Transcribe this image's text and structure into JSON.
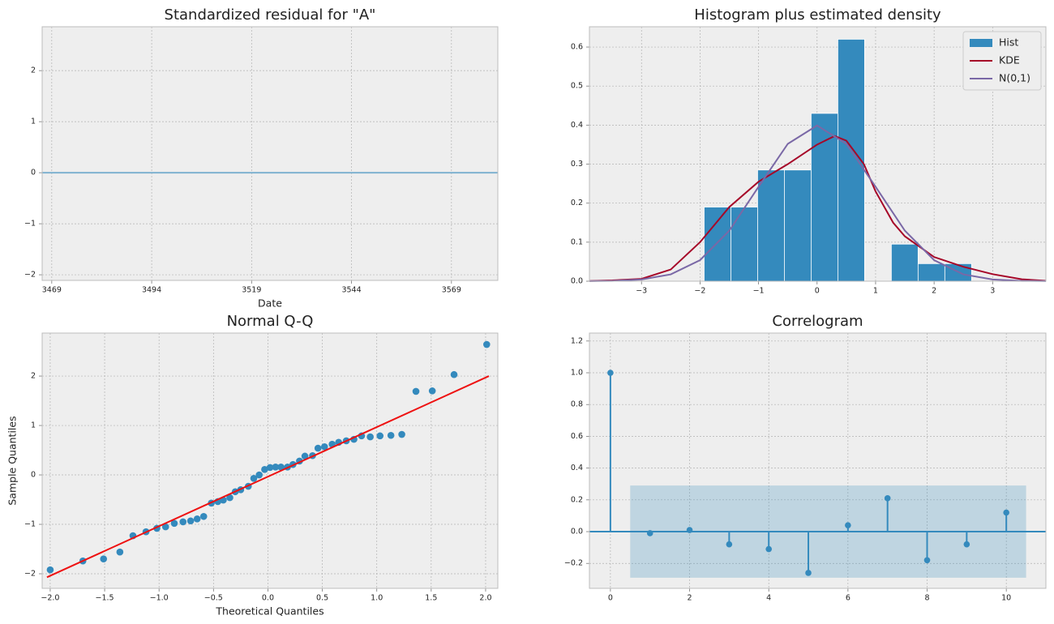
{
  "chart_data": [
    {
      "type": "line",
      "title": "Standardized residual for \"A\"",
      "xlabel": "Date",
      "x": [
        3466.6,
        3580.6
      ],
      "values": [
        0,
        0
      ],
      "color": "#7fb2d0",
      "xlim": [
        3466.6,
        3580.6
      ],
      "ylim": [
        -2.11,
        2.86
      ],
      "xticks": [
        3469,
        3494,
        3519,
        3544,
        3569
      ],
      "yticks": [
        {
          "value": -2,
          "label": "−2"
        },
        {
          "value": -1,
          "label": "−1"
        },
        0,
        1,
        2
      ],
      "grid": true
    },
    {
      "type": "histogram",
      "title": "Histogram plus estimated density",
      "name": "Hist",
      "color": "#348abd",
      "bins": [
        -1.93,
        -1.473,
        -1.016,
        -0.559,
        -0.102,
        0.355,
        0.812,
        1.269,
        1.726,
        2.183,
        2.64
      ],
      "values": [
        0.19,
        0.19,
        0.285,
        0.285,
        0.43,
        0.62,
        0,
        0.095,
        0.045,
        0.045
      ],
      "lines": [
        {
          "name": "KDE",
          "color": "#a60628",
          "x": [
            -3.89,
            -3.5,
            -3,
            -2.5,
            -2,
            -1.5,
            -1,
            -0.5,
            0,
            0.3,
            0.5,
            0.8,
            1,
            1.3,
            1.5,
            2,
            2.5,
            3,
            3.5,
            3.91
          ],
          "values": [
            0.0005,
            0.002,
            0.006,
            0.03,
            0.1,
            0.19,
            0.255,
            0.3,
            0.35,
            0.372,
            0.36,
            0.3,
            0.23,
            0.15,
            0.115,
            0.062,
            0.037,
            0.018,
            0.005,
            0.001
          ]
        },
        {
          "name": "N(0,1)",
          "color": "#7a68a6",
          "x": [
            -3.89,
            -3.5,
            -3,
            -2.5,
            -2,
            -1.5,
            -1,
            -0.5,
            0,
            0.5,
            1,
            1.5,
            2,
            2.5,
            3,
            3.5,
            3.91
          ],
          "values": [
            0.0002,
            0.0009,
            0.0044,
            0.0175,
            0.054,
            0.1295,
            0.242,
            0.352,
            0.399,
            0.352,
            0.242,
            0.1295,
            0.054,
            0.0175,
            0.0044,
            0.0009,
            0.0002
          ]
        }
      ],
      "legend": "upper right",
      "xlim": [
        -3.89,
        3.91
      ],
      "ylim": [
        0,
        0.652
      ],
      "xticks": [
        {
          "value": -3,
          "label": "−3"
        },
        {
          "value": -2,
          "label": "−2"
        },
        {
          "value": -1,
          "label": "−1"
        },
        0,
        1,
        2,
        3
      ],
      "yticks": [
        {
          "value": 0,
          "label": "0.0"
        },
        0.1,
        0.2,
        0.3,
        0.4,
        0.5,
        0.6
      ],
      "grid": true
    },
    {
      "type": "scatter",
      "title": "Normal Q-Q",
      "xlabel": "Theoretical Quantiles",
      "ylabel": "Sample Quantiles",
      "color": "#348abd",
      "x": [
        -2.0,
        -1.7,
        -1.51,
        -1.36,
        -1.24,
        -1.12,
        -1.02,
        -0.94,
        -0.86,
        -0.78,
        -0.71,
        -0.65,
        -0.59,
        -0.52,
        -0.46,
        -0.41,
        -0.35,
        -0.3,
        -0.25,
        -0.18,
        -0.13,
        -0.08,
        -0.03,
        0.02,
        0.07,
        0.12,
        0.18,
        0.23,
        0.29,
        0.34,
        0.41,
        0.46,
        0.52,
        0.59,
        0.65,
        0.72,
        0.79,
        0.86,
        0.94,
        1.03,
        1.13,
        1.23,
        1.36,
        1.51,
        1.71,
        2.01
      ],
      "values": [
        -1.92,
        -1.74,
        -1.7,
        -1.56,
        -1.23,
        -1.15,
        -1.08,
        -1.05,
        -0.98,
        -0.95,
        -0.93,
        -0.89,
        -0.84,
        -0.57,
        -0.54,
        -0.51,
        -0.46,
        -0.34,
        -0.3,
        -0.23,
        -0.07,
        0.0,
        0.11,
        0.15,
        0.16,
        0.16,
        0.16,
        0.21,
        0.28,
        0.38,
        0.39,
        0.54,
        0.57,
        0.62,
        0.66,
        0.69,
        0.72,
        0.79,
        0.77,
        0.79,
        0.8,
        0.82,
        1.69,
        1.7,
        2.03,
        2.64
      ],
      "line": {
        "color": "#ee1111",
        "x": [
          -2.03,
          2.03
        ],
        "values": [
          -2.07,
          2.0
        ]
      },
      "xlim": [
        -2.074,
        2.112
      ],
      "ylim": [
        -2.295,
        2.87
      ],
      "xticks": [
        {
          "value": -2,
          "label": "−2.0"
        },
        {
          "value": -1.5,
          "label": "−1.5"
        },
        {
          "value": -1,
          "label": "−1.0"
        },
        {
          "value": -0.5,
          "label": "−0.5"
        },
        {
          "value": 0,
          "label": "0.0"
        },
        0.5,
        {
          "value": 1,
          "label": "1.0"
        },
        1.5,
        {
          "value": 2,
          "label": "2.0"
        }
      ],
      "yticks": [
        {
          "value": -2,
          "label": "−2"
        },
        {
          "value": -1,
          "label": "−1"
        },
        0,
        1,
        2
      ],
      "grid": true
    },
    {
      "type": "stem",
      "title": "Correlogram",
      "color": "#348abd",
      "x": [
        0,
        1,
        2,
        3,
        4,
        5,
        6,
        7,
        8,
        9,
        10
      ],
      "values": [
        1.0,
        -0.01,
        0.01,
        -0.08,
        -0.11,
        -0.26,
        0.04,
        0.21,
        -0.18,
        -0.08,
        0.12
      ],
      "band": {
        "x": [
          0.5,
          10.5
        ],
        "upper": [
          0.29,
          0.29
        ],
        "lower": [
          -0.29,
          -0.29
        ],
        "color": "#348abd"
      },
      "xlim": [
        -0.53,
        11.0
      ],
      "ylim": [
        -0.357,
        1.25
      ],
      "xticks": [
        0,
        2,
        4,
        6,
        8,
        10
      ],
      "yticks": [
        {
          "value": -0.2,
          "label": "−0.2"
        },
        {
          "value": 0,
          "label": "0.0"
        },
        0.2,
        0.4,
        0.6,
        0.8,
        {
          "value": 1,
          "label": "1.0"
        },
        1.2
      ],
      "grid": true
    }
  ]
}
